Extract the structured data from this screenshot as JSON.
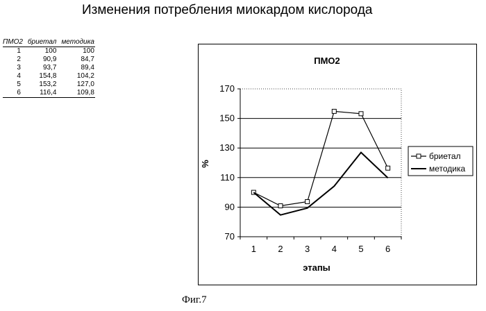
{
  "title": "Изменения потребления миокардом кислорода",
  "table": {
    "headers": [
      "ПМО2",
      "бриетал",
      "методика"
    ],
    "rows": [
      [
        "1",
        "100",
        "100"
      ],
      [
        "2",
        "90,9",
        "84,7"
      ],
      [
        "3",
        "93,7",
        "89,4"
      ],
      [
        "4",
        "154,8",
        "104,2"
      ],
      [
        "5",
        "153,2",
        "127,0"
      ],
      [
        "6",
        "116,4",
        "109,8"
      ]
    ]
  },
  "chart_data": {
    "type": "line",
    "title": "ПМО2",
    "xlabel": "этапы",
    "ylabel": "%",
    "categories": [
      "1",
      "2",
      "3",
      "4",
      "5",
      "6"
    ],
    "ylim": [
      70,
      170
    ],
    "yticks": [
      70,
      90,
      110,
      130,
      150,
      170
    ],
    "grid": true,
    "legend_position": "right",
    "series": [
      {
        "name": "бриетал",
        "values": [
          100,
          90.9,
          93.7,
          154.8,
          153.2,
          116.4
        ],
        "marker": "square",
        "color": "#000000"
      },
      {
        "name": "методика",
        "values": [
          100,
          84.7,
          89.4,
          104.2,
          127.0,
          109.8
        ],
        "marker": "none",
        "color": "#000000"
      }
    ]
  },
  "caption": "Фиг.7"
}
